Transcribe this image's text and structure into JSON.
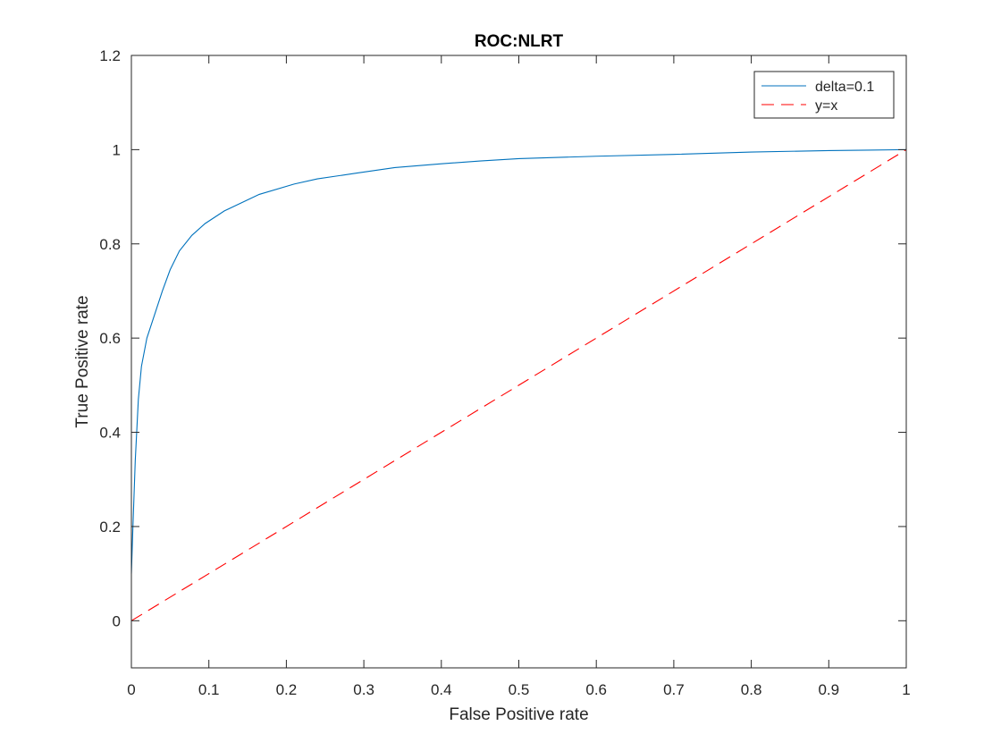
{
  "chart_data": {
    "type": "line",
    "title": "ROC:NLRT",
    "xlabel": "False Positive rate",
    "ylabel": "True Positive rate",
    "xlim": [
      0,
      1
    ],
    "ylim": [
      -0.1,
      1.2
    ],
    "xticks": [
      0,
      0.1,
      0.2,
      0.3,
      0.4,
      0.5,
      0.6,
      0.7,
      0.8,
      0.9,
      1
    ],
    "xtick_labels": [
      "0",
      "0.1",
      "0.2",
      "0.3",
      "0.4",
      "0.5",
      "0.6",
      "0.7",
      "0.8",
      "0.9",
      "1"
    ],
    "yticks": [
      0,
      0.2,
      0.4,
      0.6,
      0.8,
      1,
      1.2
    ],
    "ytick_labels": [
      "0",
      "0.2",
      "0.4",
      "0.6",
      "0.8",
      "1",
      "1.2"
    ],
    "grid": false,
    "legend_position": "top-right",
    "series": [
      {
        "name": "delta=0.1",
        "color": "#0072BD",
        "style": "solid",
        "x": [
          0,
          0.002,
          0.005,
          0.009,
          0.013,
          0.02,
          0.03,
          0.04,
          0.05,
          0.062,
          0.078,
          0.095,
          0.12,
          0.165,
          0.21,
          0.24,
          0.29,
          0.34,
          0.4,
          0.45,
          0.5,
          0.6,
          0.7,
          0.8,
          0.9,
          0.95,
          1
        ],
        "y": [
          0.1,
          0.2,
          0.34,
          0.47,
          0.54,
          0.6,
          0.65,
          0.7,
          0.745,
          0.785,
          0.818,
          0.843,
          0.87,
          0.905,
          0.927,
          0.938,
          0.95,
          0.962,
          0.97,
          0.976,
          0.981,
          0.986,
          0.99,
          0.995,
          0.998,
          0.999,
          1.0
        ]
      },
      {
        "name": "y=x",
        "color": "#FF0000",
        "style": "dashed",
        "x": [
          0,
          1
        ],
        "y": [
          0,
          1
        ]
      }
    ]
  }
}
